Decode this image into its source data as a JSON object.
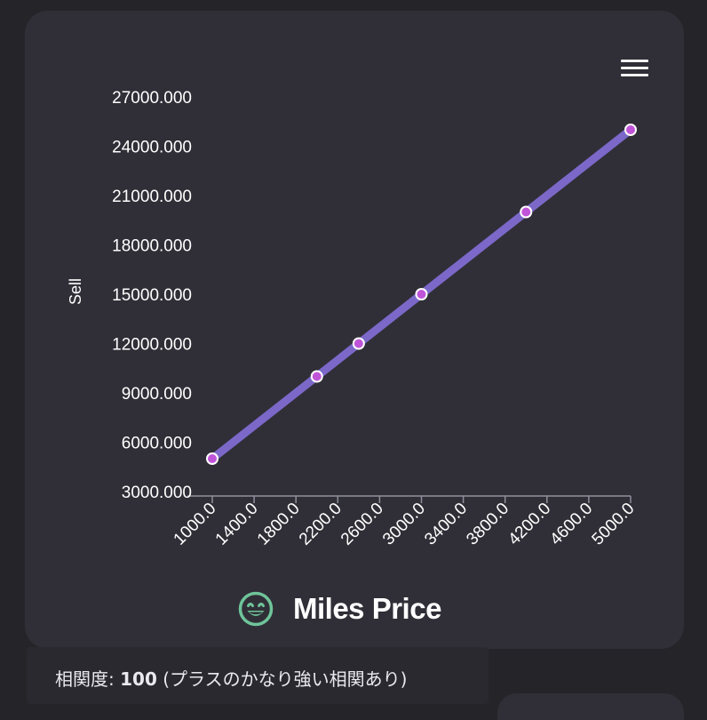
{
  "chart_data": {
    "type": "line",
    "title": "Miles Price",
    "xlabel": "",
    "ylabel": "Sell",
    "x": [
      1000,
      2000,
      2400,
      3000,
      4000,
      5000
    ],
    "y": [
      5000,
      10000,
      12000,
      15000,
      20000,
      25000
    ],
    "xlim": [
      1000,
      5000
    ],
    "ylim": [
      3000,
      27000
    ],
    "x_ticks": [
      "1000.0",
      "1400.0",
      "1800.0",
      "2200.0",
      "2600.0",
      "3000.0",
      "3400.0",
      "3800.0",
      "4200.0",
      "4600.0",
      "5000.0"
    ],
    "y_ticks": [
      "3000.000",
      "6000.000",
      "9000.000",
      "12000.000",
      "15000.000",
      "18000.000",
      "21000.000",
      "24000.000",
      "27000.000"
    ],
    "grid": false,
    "line_color": "#7b68c8",
    "marker_color": "#c054d8",
    "marker_edge_color": "#ffffff"
  },
  "title_icon": "grinning-face-icon",
  "title_icon_color": "#6fc49a",
  "menu_icon": "hamburger-menu-icon",
  "correlation": {
    "label": "相関度:",
    "value": "100",
    "description": "(プラスのかなり強い相関あり)"
  }
}
